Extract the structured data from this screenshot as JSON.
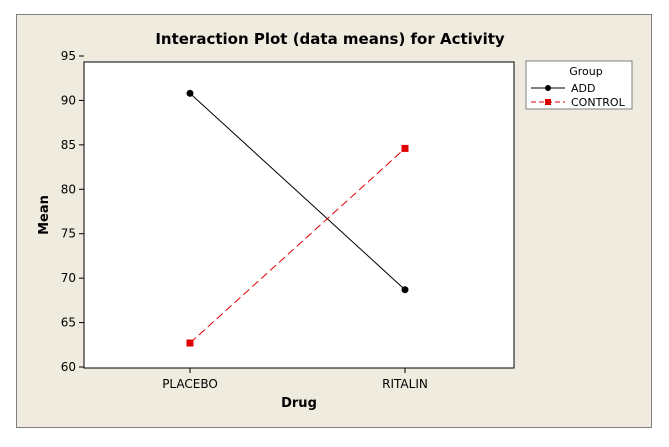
{
  "chart_data": {
    "type": "line",
    "title": "Interaction Plot (data means) for Activity",
    "xlabel": "Drug",
    "ylabel": "Mean",
    "categories": [
      "PLACEBO",
      "RITALIN"
    ],
    "ylim": [
      60,
      95
    ],
    "yticks": [
      60,
      65,
      70,
      75,
      80,
      85,
      90,
      95
    ],
    "grid": false,
    "legend": {
      "title": "Group",
      "placement": "right"
    },
    "series": [
      {
        "name": "ADD",
        "values": [
          90.8,
          68.7
        ],
        "color": "#000000",
        "marker": "circle",
        "line_style": "solid"
      },
      {
        "name": "CONTROL",
        "values": [
          62.7,
          84.6
        ],
        "color": "#e00000",
        "marker": "square",
        "line_style": "dashed"
      }
    ]
  },
  "colors": {
    "frame_background": "#efebdf",
    "plot_background": "#ffffff"
  }
}
